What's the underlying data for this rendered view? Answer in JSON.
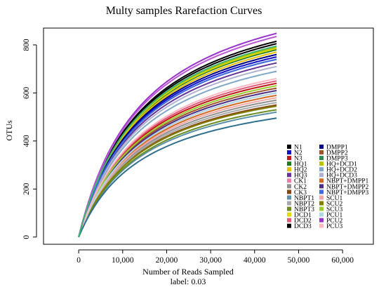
{
  "chart_data": {
    "type": "line",
    "title": "Multy samples Rarefaction Curves",
    "xlabel": "Number of Reads Sampled",
    "xlabel2": "label: 0.03",
    "ylabel": "OTUs",
    "xlim": [
      -8000,
      67000
    ],
    "ylim": [
      -30,
      870
    ],
    "x_ticks": [
      0,
      10000,
      20000,
      30000,
      40000,
      50000,
      60000
    ],
    "x_tick_labels": [
      "0",
      "10,000",
      "20,000",
      "30,000",
      "40,000",
      "50,000",
      "60,000"
    ],
    "y_ticks": [
      0,
      200,
      400,
      600,
      800
    ],
    "y_tick_labels": [
      "0",
      "200",
      "400",
      "600",
      "800"
    ],
    "grid": false,
    "legend_position": "bottom-right",
    "x_max_sampled": 45000,
    "series": [
      {
        "name": "N1",
        "color": "#000000",
        "final": 805
      },
      {
        "name": "N2",
        "color": "#1010c8",
        "final": 750
      },
      {
        "name": "N3",
        "color": "#c01818",
        "final": 640
      },
      {
        "name": "HQ1",
        "color": "#1e7a1e",
        "final": 780
      },
      {
        "name": "HQ2",
        "color": "#e6c000",
        "final": 770
      },
      {
        "name": "HQ3",
        "color": "#663399",
        "final": 725
      },
      {
        "name": "CK1",
        "color": "#e87ea6",
        "final": 600
      },
      {
        "name": "CK2",
        "color": "#909090",
        "final": 570
      },
      {
        "name": "CK3",
        "color": "#8b4513",
        "final": 550
      },
      {
        "name": "NBPT1",
        "color": "#5c8fa8",
        "final": 520
      },
      {
        "name": "NBPT2",
        "color": "#a9a9a9",
        "final": 560
      },
      {
        "name": "NBPT3",
        "color": "#6b8e23",
        "final": 530
      },
      {
        "name": "DCD1",
        "color": "#dddd00",
        "final": 785
      },
      {
        "name": "DCD2",
        "color": "#e05a7a",
        "final": 650
      },
      {
        "name": "DCD3",
        "color": "#000000",
        "final": 815
      },
      {
        "name": "DMPP1",
        "color": "#000080",
        "final": 760
      },
      {
        "name": "DMPP2",
        "color": "#a0522d",
        "final": 620
      },
      {
        "name": "DMPP3",
        "color": "#2e8b57",
        "final": 740
      },
      {
        "name": "HQ+DCD1",
        "color": "#b8c400",
        "final": 790
      },
      {
        "name": "HQ+DCD2",
        "color": "#7fa8c8",
        "final": 690
      },
      {
        "name": "HQ+DCD3",
        "color": "#b0b0d0",
        "final": 710
      },
      {
        "name": "NBPT+DMPP1",
        "color": "#d2691e",
        "final": 590
      },
      {
        "name": "NBPT+DMPP2",
        "color": "#4b2e83",
        "final": 610
      },
      {
        "name": "NBPT+DMPP3",
        "color": "#4169e1",
        "final": 740
      },
      {
        "name": "SCU1",
        "color": "#f4a6a6",
        "final": 580
      },
      {
        "name": "SCU2",
        "color": "#808000",
        "final": 545
      },
      {
        "name": "SCU3",
        "color": "#9acd32",
        "final": 630
      },
      {
        "name": "PCU1",
        "color": "#add8e6",
        "final": 600
      },
      {
        "name": "PCU2",
        "color": "#9932cc",
        "final": 848
      },
      {
        "name": "PCU3",
        "color": "#ffb6c1",
        "final": 660
      },
      {
        "color": "#2f6f8f",
        "final": 495
      },
      {
        "color": "#ba55d3",
        "final": 835
      },
      {
        "color": "#3cb371",
        "final": 795
      }
    ]
  }
}
